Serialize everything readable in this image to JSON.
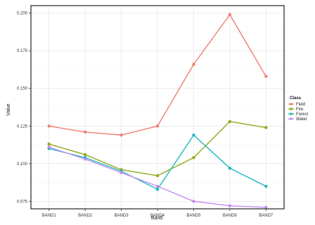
{
  "chart_data": {
    "type": "line",
    "title": "",
    "xlabel": "Band",
    "ylabel": "Value",
    "categories": [
      "BAND1",
      "BAND2",
      "BAND3",
      "BAND4",
      "BAND5",
      "BAND6",
      "BAND7"
    ],
    "ylim": [
      0.07,
      0.205
    ],
    "yticks": [
      0.075,
      0.1,
      0.125,
      0.15,
      0.175,
      0.2
    ],
    "ytick_labels": [
      "0.075",
      "0.100",
      "0.125",
      "0.150",
      "0.175",
      "0.200"
    ],
    "grid": true,
    "legend": {
      "title": "Class",
      "placement": "right"
    },
    "series": [
      {
        "name": "Field",
        "color": "#f07f72",
        "values": [
          0.125,
          0.121,
          0.119,
          0.125,
          0.166,
          0.199,
          0.158
        ]
      },
      {
        "name": "Fire",
        "color": "#8faa1e",
        "values": [
          0.113,
          0.106,
          0.096,
          0.092,
          0.104,
          0.128,
          0.124
        ]
      },
      {
        "name": "Forest",
        "color": "#1fb8bd",
        "values": [
          0.11,
          0.104,
          0.095,
          0.083,
          0.119,
          0.097,
          0.085
        ]
      },
      {
        "name": "Water",
        "color": "#c68af5",
        "values": [
          0.111,
          0.103,
          0.094,
          0.085,
          0.075,
          0.072,
          0.071
        ]
      }
    ]
  }
}
